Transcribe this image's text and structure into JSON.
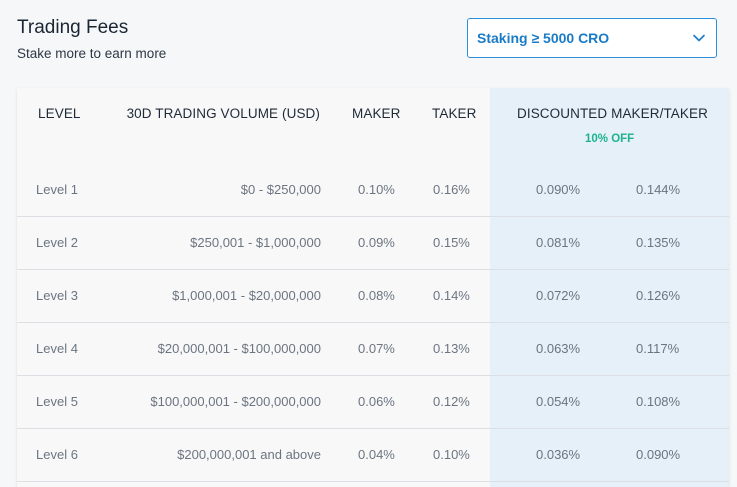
{
  "header": {
    "title": "Trading Fees",
    "subtitle": "Stake more to earn more"
  },
  "staking_select": {
    "selected": "Staking ≥ 5000 CRO",
    "icon": "chevron-down-icon"
  },
  "table": {
    "columns": {
      "level": "LEVEL",
      "volume": "30D TRADING VOLUME (USD)",
      "maker": "MAKER",
      "taker": "TAKER",
      "discounted": "DISCOUNTED MAKER/TAKER",
      "discount_badge": "10% OFF"
    },
    "rows": [
      {
        "level": "Level 1",
        "volume": "$0 - $250,000",
        "maker": "0.10%",
        "taker": "0.16%",
        "disc_maker": "0.090%",
        "disc_taker": "0.144%"
      },
      {
        "level": "Level 2",
        "volume": "$250,001 - $1,000,000",
        "maker": "0.09%",
        "taker": "0.15%",
        "disc_maker": "0.081%",
        "disc_taker": "0.135%"
      },
      {
        "level": "Level 3",
        "volume": "$1,000,001 - $20,000,000",
        "maker": "0.08%",
        "taker": "0.14%",
        "disc_maker": "0.072%",
        "disc_taker": "0.126%"
      },
      {
        "level": "Level 4",
        "volume": "$20,000,001 - $100,000,000",
        "maker": "0.07%",
        "taker": "0.13%",
        "disc_maker": "0.063%",
        "disc_taker": "0.117%"
      },
      {
        "level": "Level 5",
        "volume": "$100,000,001 - $200,000,000",
        "maker": "0.06%",
        "taker": "0.12%",
        "disc_maker": "0.054%",
        "disc_taker": "0.108%"
      },
      {
        "level": "Level 6",
        "volume": "$200,000,001 and above",
        "maker": "0.04%",
        "taker": "0.10%",
        "disc_maker": "0.036%",
        "disc_taker": "0.090%"
      }
    ]
  },
  "colors": {
    "accent": "#1a7bc7",
    "discount_green": "#1db38e",
    "discount_panel": "#e5f0f9"
  }
}
